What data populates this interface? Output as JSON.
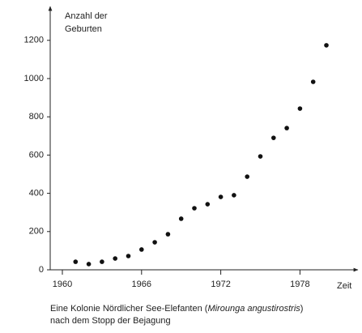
{
  "chart_data": {
    "type": "scatter",
    "ylabel": [
      "Anzahl der",
      "Geburten"
    ],
    "xlabel": "Zeit",
    "caption": [
      [
        "Eine Kolonie Nördlicher See-Elefanten (",
        "Mirounga angustirostris",
        ")"
      ],
      [
        "nach dem Stopp der Bejagung"
      ]
    ],
    "x": [
      1961,
      1962,
      1963,
      1964,
      1965,
      1966,
      1967,
      1968,
      1969,
      1970,
      1971,
      1972,
      1973,
      1974,
      1975,
      1976,
      1977,
      1978,
      1979,
      1980
    ],
    "series": [
      {
        "color": "#111111",
        "values": [
          42,
          30,
          42,
          59,
          72,
          106,
          144,
          186,
          267,
          322,
          343,
          381,
          390,
          487,
          593,
          690,
          741,
          843,
          983,
          1174
        ]
      }
    ],
    "xlim": [
      1959.08,
      1982.3
    ],
    "xticks": [
      1960,
      1966,
      1972,
      1978
    ],
    "ylim": [
      0,
      1377
    ],
    "yticks": [
      0,
      200,
      400,
      600,
      800,
      1000,
      1200
    ]
  }
}
